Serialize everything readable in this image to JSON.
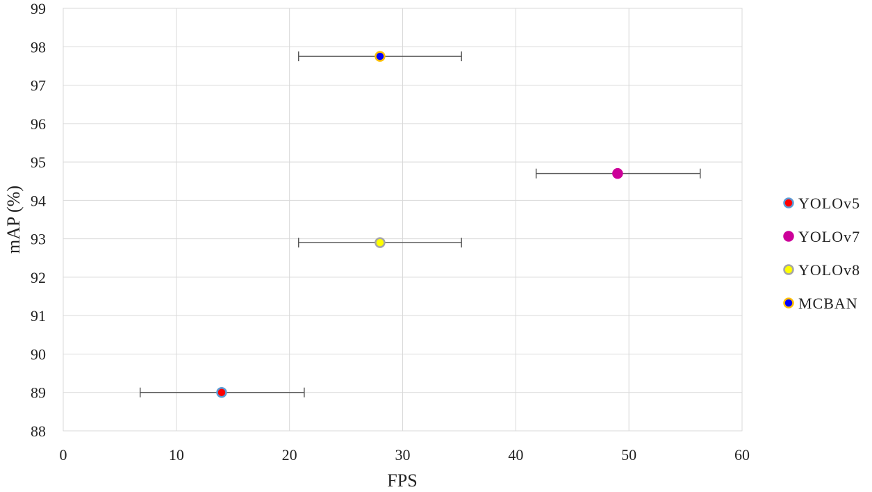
{
  "chart_data": {
    "type": "scatter",
    "title": "",
    "xlabel": "FPS",
    "ylabel": "mAP (%)",
    "xlim": [
      0,
      60
    ],
    "ylim": [
      88,
      99
    ],
    "xticks": [
      0,
      10,
      20,
      30,
      40,
      50,
      60
    ],
    "yticks": [
      88,
      89,
      90,
      91,
      92,
      93,
      94,
      95,
      96,
      97,
      98,
      99
    ],
    "grid": true,
    "legend_position": "right",
    "series": [
      {
        "name": "YOLOv5",
        "x": 14,
        "y": 89.0,
        "x_error": [
          6.8,
          21.3
        ],
        "fill": "#ff0000",
        "edge": "#5b9bd5"
      },
      {
        "name": "YOLOv7",
        "x": 49,
        "y": 94.7,
        "x_error": [
          41.8,
          56.3
        ],
        "fill": "#cc0099",
        "edge": "#cc0099"
      },
      {
        "name": "YOLOv8",
        "x": 28,
        "y": 92.9,
        "x_error": [
          20.8,
          35.2
        ],
        "fill": "#ffff00",
        "edge": "#a5a5a5"
      },
      {
        "name": "MCBAN",
        "x": 28,
        "y": 97.75,
        "x_error": [
          20.8,
          35.2
        ],
        "fill": "#0000ff",
        "edge": "#ffc000"
      }
    ]
  }
}
